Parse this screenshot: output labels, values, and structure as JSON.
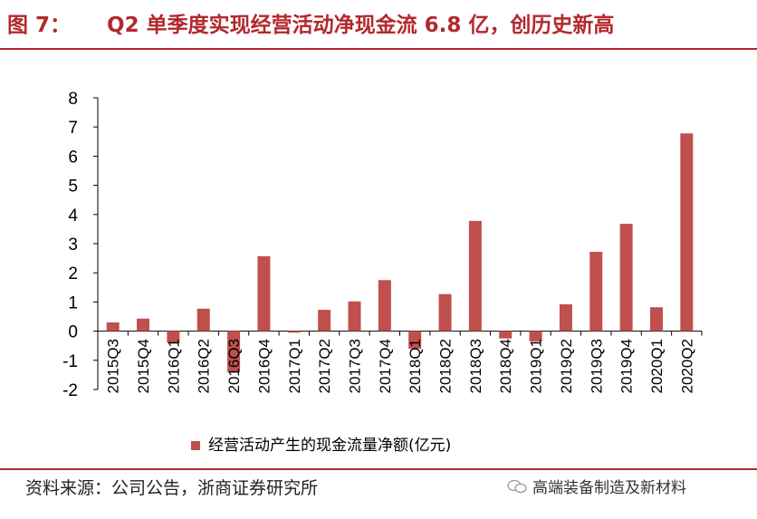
{
  "header": {
    "figure_label": "图 7：",
    "title_text": "Q2 单季度实现经营活动净现金流 6.8 亿，创历史新高"
  },
  "footer": {
    "source": "资料来源：公司公告，浙商证券研究所",
    "watermark": "高端装备制造及新材料"
  },
  "colors": {
    "accent": "#b3282d",
    "bar": "#c0504d"
  },
  "chart_data": {
    "type": "bar",
    "title": "Q2 单季度实现经营活动净现金流 6.8 亿，创历史新高",
    "categories": [
      "2015Q3",
      "2015Q4",
      "2016Q1",
      "2016Q2",
      "2016Q3",
      "2016Q4",
      "2017Q1",
      "2017Q2",
      "2017Q3",
      "2017Q4",
      "2018Q1",
      "2018Q2",
      "2018Q3",
      "2018Q4",
      "2019Q1",
      "2019Q2",
      "2019Q3",
      "2019Q4",
      "2020Q1",
      "2020Q2"
    ],
    "series": [
      {
        "name": "经营活动产生的现金流量净额(亿元)",
        "values": [
          0.3,
          0.43,
          -0.4,
          0.77,
          -1.4,
          2.57,
          -0.05,
          0.73,
          1.02,
          1.75,
          -0.6,
          1.27,
          3.78,
          -0.25,
          -0.35,
          0.92,
          2.72,
          3.68,
          0.82,
          6.78
        ]
      }
    ],
    "ylim": [
      -2,
      8
    ],
    "yticks": [
      "-2",
      "-1",
      "0",
      "1",
      "2",
      "3",
      "4",
      "5",
      "6",
      "7",
      "8"
    ],
    "xlabel": "",
    "ylabel": "",
    "legend": "bottom-center"
  }
}
